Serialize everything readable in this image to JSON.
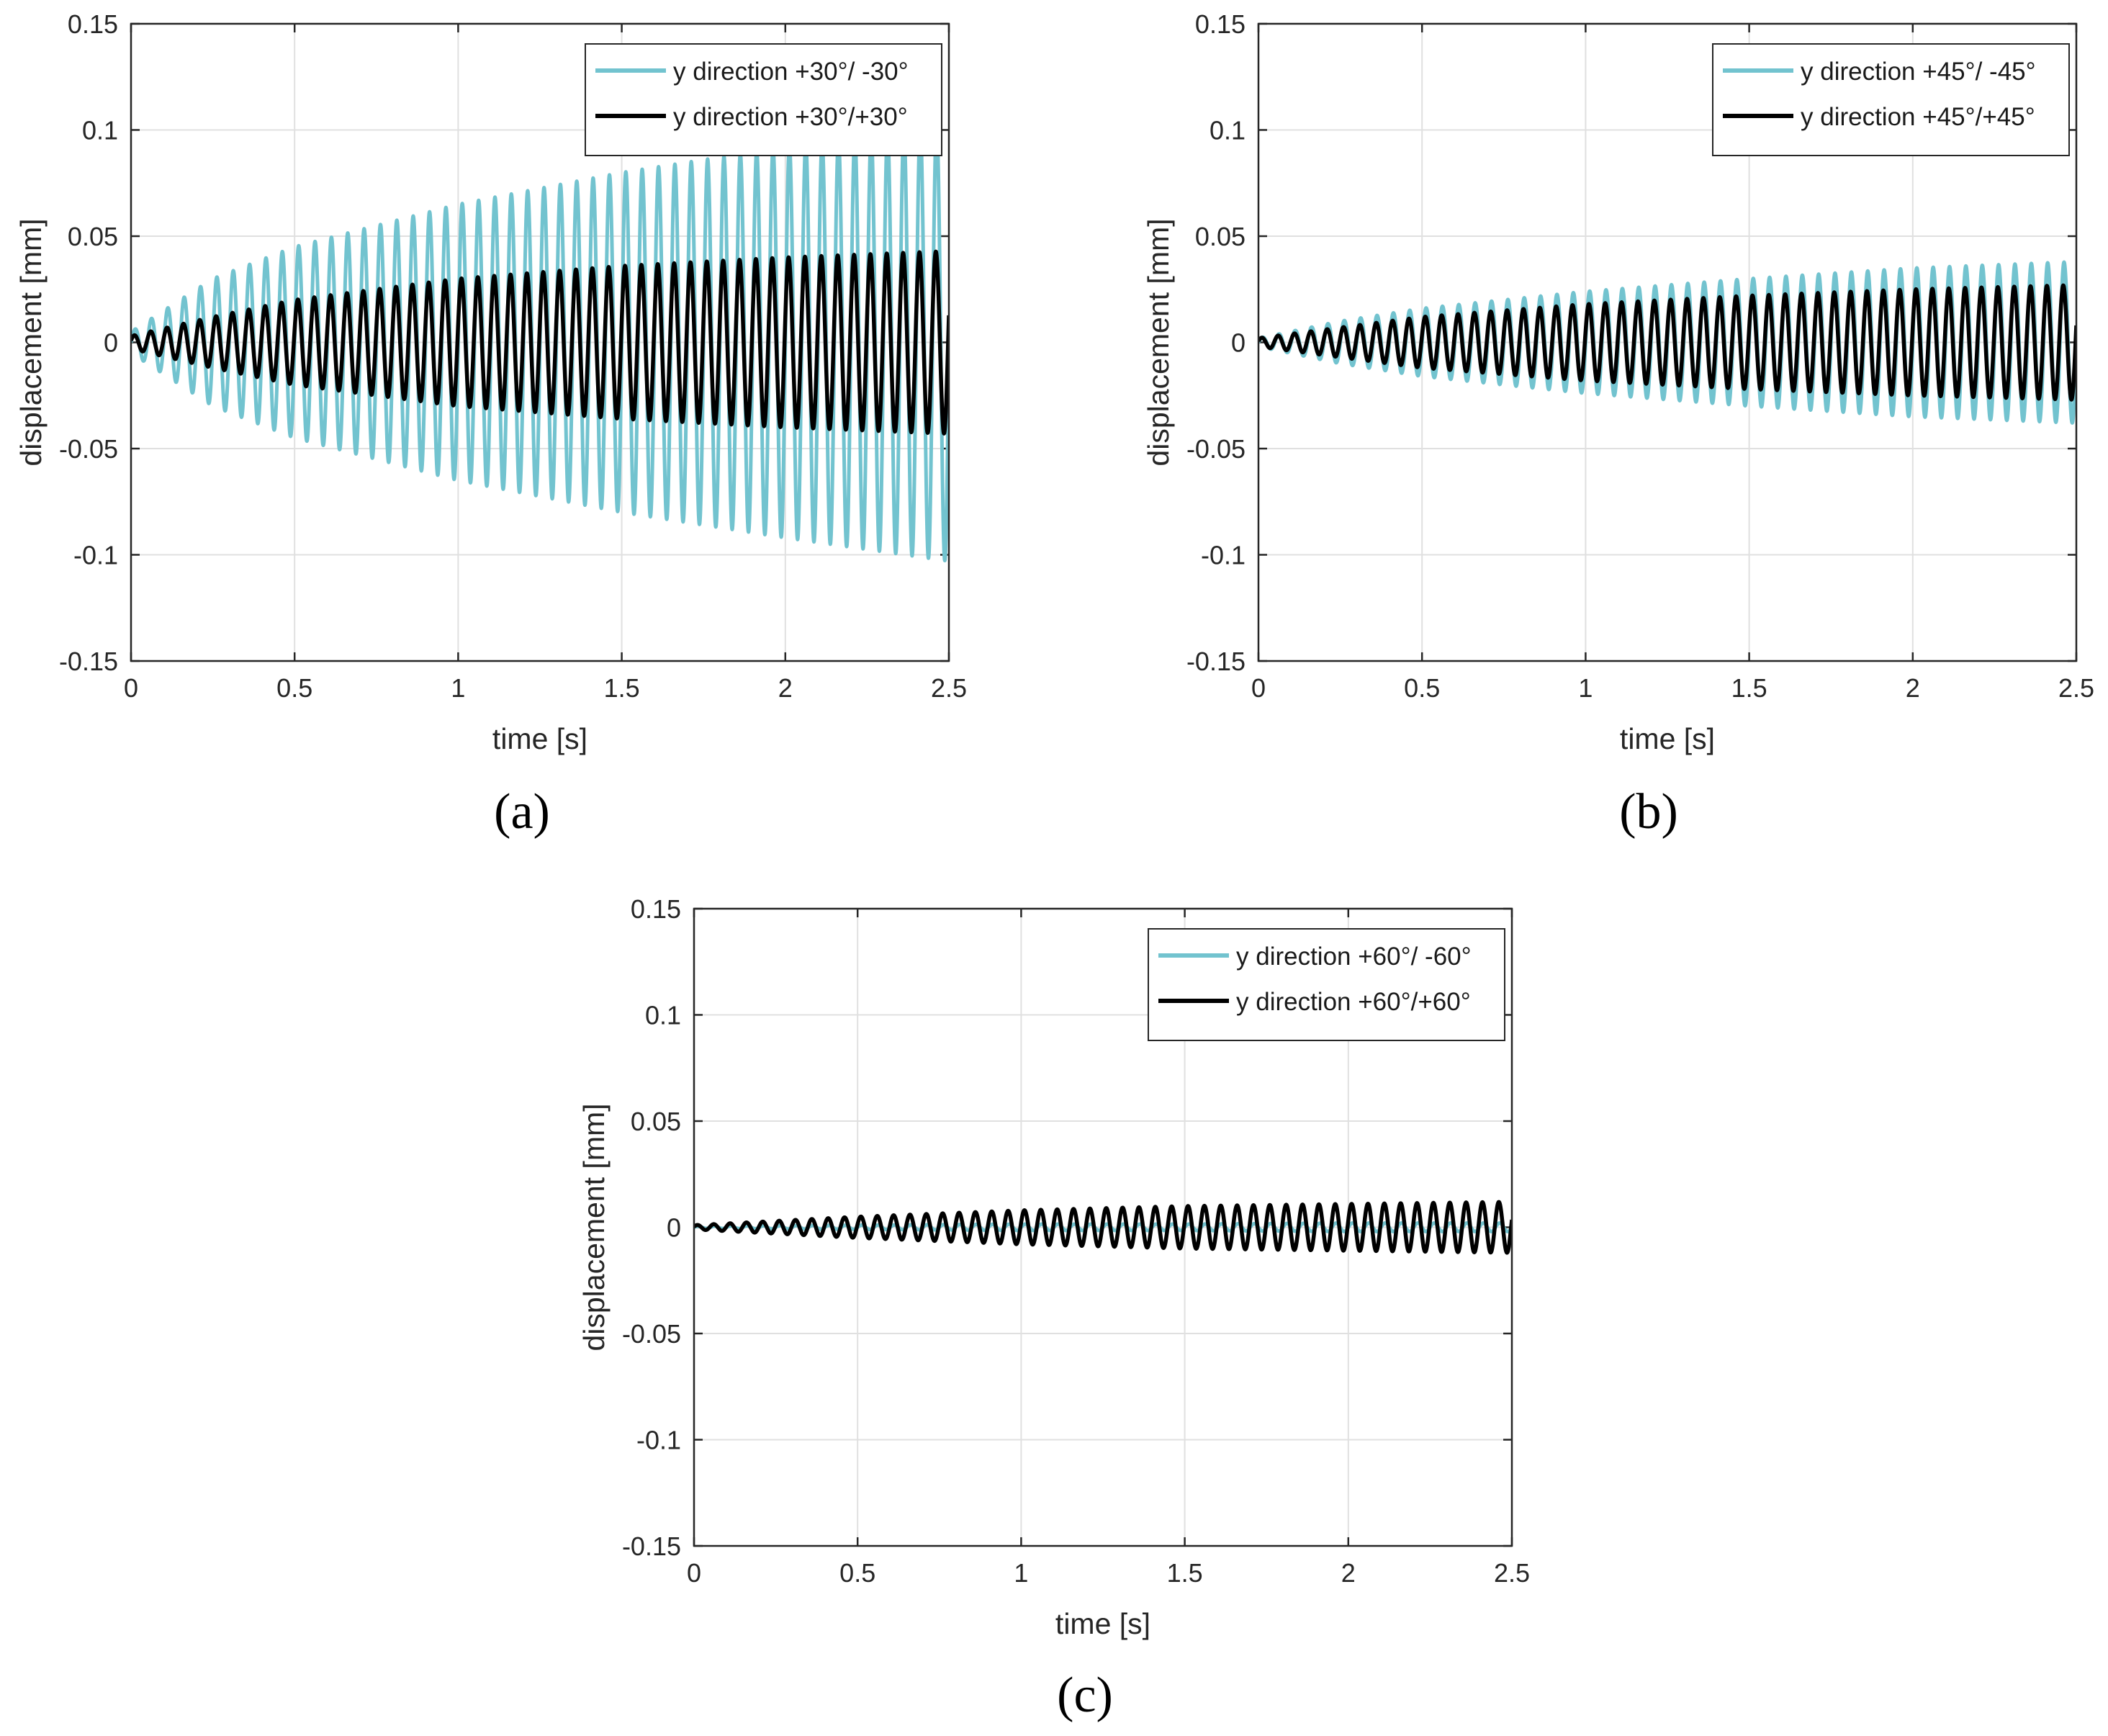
{
  "chart_data": [
    {
      "type": "line",
      "panel_label": "(a)",
      "xlabel": "time [s]",
      "ylabel": "displacement [mm]",
      "xlim": [
        0,
        2.5
      ],
      "ylim": [
        -0.15,
        0.15
      ],
      "xticks": [
        "0",
        "0.5",
        "1",
        "1.5",
        "2",
        "2.5"
      ],
      "yticks": [
        "0.15",
        "0.1",
        "0.05",
        "0",
        "-0.05",
        "-0.1",
        "-0.15"
      ],
      "grid": true,
      "legend_position": "top-right",
      "series": [
        {
          "name": "y direction +30°/ -30°",
          "color": "#72c3cf",
          "waveform": "sinusoid",
          "frequency_hz": 20,
          "amplitude_envelope": {
            "t": [
              0,
              0.25,
              0.5,
              1,
              1.5,
              2,
              2.5
            ],
            "amplitude": [
              0.005,
              0.03,
              0.045,
              0.065,
              0.08,
              0.092,
              0.103
            ]
          }
        },
        {
          "name": "y direction +30°/+30°",
          "color": "#000000",
          "waveform": "sinusoid",
          "frequency_hz": 20,
          "amplitude_envelope": {
            "t": [
              0,
              0.25,
              0.5,
              1,
              1.5,
              2,
              2.5
            ],
            "amplitude": [
              0.003,
              0.012,
              0.02,
              0.03,
              0.036,
              0.04,
              0.043
            ]
          }
        }
      ]
    },
    {
      "type": "line",
      "panel_label": "(b)",
      "xlabel": "time [s]",
      "ylabel": "displacement [mm]",
      "xlim": [
        0,
        2.5
      ],
      "ylim": [
        -0.15,
        0.15
      ],
      "xticks": [
        "0",
        "0.5",
        "1",
        "1.5",
        "2",
        "2.5"
      ],
      "yticks": [
        "0.15",
        "0.1",
        "0.05",
        "0",
        "-0.05",
        "-0.1",
        "-0.15"
      ],
      "grid": true,
      "legend_position": "top-right",
      "series": [
        {
          "name": "y direction +45°/ -45°",
          "color": "#72c3cf",
          "waveform": "sinusoid",
          "frequency_hz": 20,
          "amplitude_envelope": {
            "t": [
              0,
              0.25,
              0.5,
              1,
              1.5,
              2,
              2.5
            ],
            "amplitude": [
              0.002,
              0.01,
              0.016,
              0.024,
              0.03,
              0.035,
              0.038
            ]
          }
        },
        {
          "name": "y direction +45°/+45°",
          "color": "#000000",
          "waveform": "sinusoid",
          "frequency_hz": 20,
          "amplitude_envelope": {
            "t": [
              0,
              0.25,
              0.5,
              1,
              1.5,
              2,
              2.5
            ],
            "amplitude": [
              0.002,
              0.007,
              0.012,
              0.018,
              0.022,
              0.025,
              0.027
            ]
          }
        }
      ]
    },
    {
      "type": "line",
      "panel_label": "(c)",
      "xlabel": "time [s]",
      "ylabel": "displacement [mm]",
      "xlim": [
        0,
        2.5
      ],
      "ylim": [
        -0.15,
        0.15
      ],
      "xticks": [
        "0",
        "0.5",
        "1",
        "1.5",
        "2",
        "2.5"
      ],
      "yticks": [
        "0.15",
        "0.1",
        "0.05",
        "0",
        "-0.05",
        "-0.1",
        "-0.15"
      ],
      "grid": true,
      "legend_position": "top-right",
      "series": [
        {
          "name": "y direction +60°/ -60°",
          "color": "#72c3cf",
          "waveform": "sinusoid",
          "frequency_hz": 20,
          "amplitude_envelope": {
            "t": [
              0,
              0.5,
              1,
              1.5,
              2,
              2.5
            ],
            "amplitude": [
              0.0005,
              0.001,
              0.0015,
              0.0015,
              0.002,
              0.002
            ]
          }
        },
        {
          "name": "y direction +60°/+60°",
          "color": "#000000",
          "waveform": "sinusoid",
          "frequency_hz": 20,
          "amplitude_envelope": {
            "t": [
              0,
              0.25,
              0.5,
              1,
              1.5,
              2,
              2.5
            ],
            "amplitude": [
              0.001,
              0.003,
              0.005,
              0.008,
              0.01,
              0.011,
              0.012
            ]
          }
        }
      ]
    }
  ]
}
